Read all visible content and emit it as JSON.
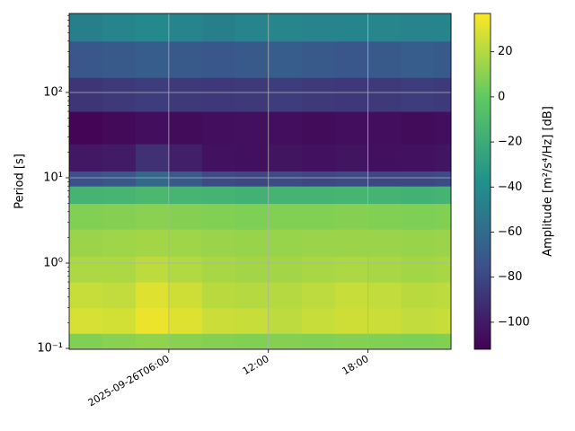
{
  "chart_data": {
    "type": "heatmap",
    "ylabel": "Period [s]",
    "colorbar_label": "Amplitude [m²/s⁴/Hz] [dB]",
    "colormap": "viridis",
    "yscale": "log",
    "grid": true,
    "xlim": [
      "2025-09-26T00:00",
      "2025-09-26T23:00"
    ],
    "xticks": [
      "2025-09-26T06:00",
      {
        "value": "2025-09-26T12:00",
        "label": "12:00"
      },
      {
        "value": "2025-09-26T18:00",
        "label": "18:00"
      }
    ],
    "ylim": [
      0.0976,
      843
    ],
    "yticks": [
      {
        "value": 0.1,
        "label": "10⁻¹"
      },
      {
        "value": 1,
        "label": "10⁰"
      },
      {
        "value": 10,
        "label": "10¹"
      },
      {
        "value": 100,
        "label": "10²"
      }
    ],
    "zlim": [
      -112,
      37
    ],
    "zticks": [
      {
        "value": -100,
        "label": "−100"
      },
      {
        "value": -80,
        "label": "−80"
      },
      {
        "value": -60,
        "label": "−60"
      },
      {
        "value": -40,
        "label": "−40"
      },
      {
        "value": -20,
        "label": "−20"
      },
      0,
      20
    ],
    "xbins": [
      "2025-09-26T00:00",
      "2025-09-26T02:00",
      "2025-09-26T04:00",
      "2025-09-26T06:00",
      "2025-09-26T08:00",
      "2025-09-26T10:00",
      "2025-09-26T12:00",
      "2025-09-26T14:00",
      "2025-09-26T16:00",
      "2025-09-26T18:00",
      "2025-09-26T20:00",
      "2025-09-26T22:00",
      "2025-09-26T23:00"
    ],
    "ybins": [
      0.0976,
      0.15,
      0.3,
      0.6,
      1.2,
      2.5,
      5,
      8,
      12,
      25,
      60,
      150,
      400,
      843
    ],
    "z": [
      [
        8,
        10,
        12,
        10,
        9,
        8,
        9,
        8,
        9,
        8,
        7,
        8
      ],
      [
        28,
        27,
        33,
        30,
        25,
        24,
        22,
        24,
        26,
        25,
        23,
        24
      ],
      [
        24,
        23,
        30,
        26,
        21,
        20,
        20,
        22,
        24,
        23,
        21,
        22
      ],
      [
        18,
        18,
        22,
        19,
        17,
        16,
        16,
        17,
        18,
        17,
        16,
        17
      ],
      [
        14,
        15,
        16,
        15,
        14,
        13,
        13,
        14,
        14,
        14,
        13,
        14
      ],
      [
        8,
        9,
        10,
        9,
        8,
        7,
        8,
        8,
        9,
        8,
        7,
        8
      ],
      [
        -15,
        -14,
        -12,
        -14,
        -15,
        -16,
        -15,
        -15,
        -14,
        -15,
        -16,
        -15
      ],
      [
        -75,
        -72,
        -62,
        -70,
        -78,
        -80,
        -78,
        -80,
        -78,
        -80,
        -80,
        -78
      ],
      [
        -102,
        -100,
        -90,
        -98,
        -104,
        -105,
        -103,
        -104,
        -103,
        -105,
        -104,
        -103
      ],
      [
        -110,
        -108,
        -106,
        -107,
        -106,
        -105,
        -106,
        -107,
        -106,
        -106,
        -107,
        -106
      ],
      [
        -88,
        -86,
        -85,
        -86,
        -87,
        -86,
        -85,
        -86,
        -87,
        -86,
        -85,
        -86
      ],
      [
        -72,
        -70,
        -68,
        -70,
        -72,
        -70,
        -68,
        -70,
        -72,
        -70,
        -68,
        -70
      ],
      [
        -48,
        -45,
        -42,
        -45,
        -48,
        -45,
        -44,
        -46,
        -45,
        -44,
        -46,
        -45
      ]
    ]
  }
}
